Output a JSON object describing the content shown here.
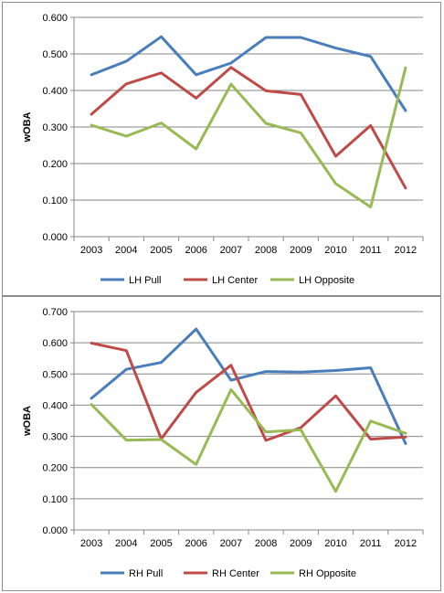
{
  "chart_data": [
    {
      "type": "line",
      "title": "",
      "xlabel": "",
      "ylabel": "wOBA",
      "categories": [
        "2003",
        "2004",
        "2005",
        "2006",
        "2007",
        "2008",
        "2009",
        "2010",
        "2011",
        "2012"
      ],
      "ylim": [
        0,
        0.6
      ],
      "yticks": [
        "0.000",
        "0.100",
        "0.200",
        "0.300",
        "0.400",
        "0.500",
        "0.600"
      ],
      "legend_position": "bottom",
      "grid": "horizontal",
      "series": [
        {
          "name": "LH Pull",
          "color": "#4a7ebb",
          "values": [
            0.443,
            0.48,
            0.547,
            0.443,
            0.475,
            0.545,
            0.545,
            0.516,
            0.493,
            0.345
          ]
        },
        {
          "name": "LH Center",
          "color": "#be4b48",
          "values": [
            0.335,
            0.418,
            0.448,
            0.379,
            0.463,
            0.399,
            0.389,
            0.22,
            0.304,
            0.133
          ]
        },
        {
          "name": "LH Opposite",
          "color": "#98b954",
          "values": [
            0.305,
            0.275,
            0.311,
            0.24,
            0.417,
            0.31,
            0.284,
            0.145,
            0.081,
            0.462
          ]
        }
      ]
    },
    {
      "type": "line",
      "title": "",
      "xlabel": "",
      "ylabel": "wOBA",
      "categories": [
        "2003",
        "2004",
        "2005",
        "2006",
        "2007",
        "2008",
        "2009",
        "2010",
        "2011",
        "2012"
      ],
      "ylim": [
        0,
        0.7
      ],
      "yticks": [
        "0.000",
        "0.100",
        "0.200",
        "0.300",
        "0.400",
        "0.500",
        "0.600",
        "0.700"
      ],
      "legend_position": "bottom",
      "grid": "horizontal",
      "series": [
        {
          "name": "RH Pull",
          "color": "#4a7ebb",
          "values": [
            0.422,
            0.515,
            0.537,
            0.644,
            0.48,
            0.508,
            0.506,
            0.511,
            0.52,
            0.277
          ]
        },
        {
          "name": "RH Center",
          "color": "#be4b48",
          "values": [
            0.599,
            0.575,
            0.292,
            0.441,
            0.528,
            0.287,
            0.328,
            0.43,
            0.291,
            0.298
          ]
        },
        {
          "name": "RH Opposite",
          "color": "#98b954",
          "values": [
            0.402,
            0.288,
            0.29,
            0.21,
            0.45,
            0.314,
            0.321,
            0.124,
            0.349,
            0.31
          ]
        }
      ]
    }
  ]
}
